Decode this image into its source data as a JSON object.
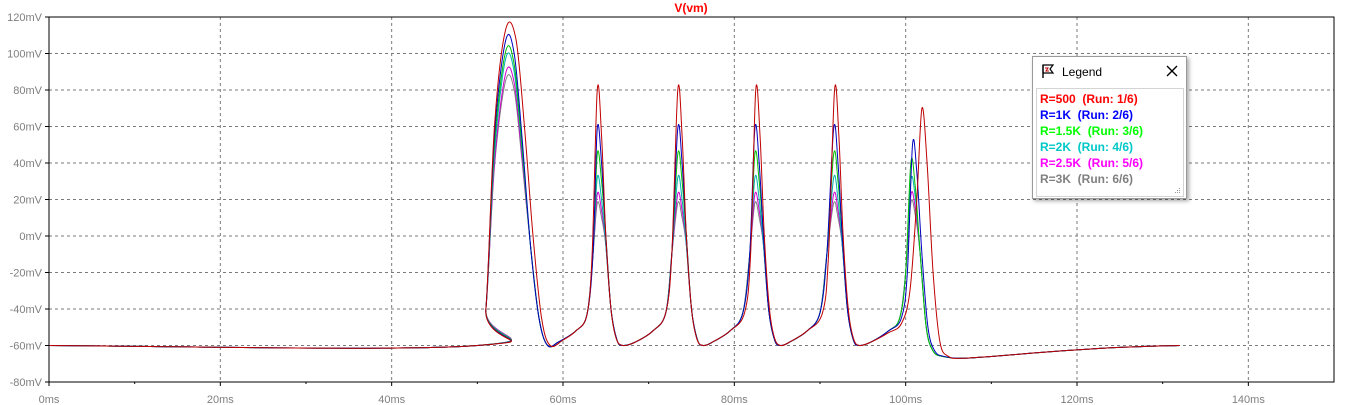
{
  "chart_data": {
    "type": "line",
    "title": "V(vm)",
    "title_color": "#ff0000",
    "xlabel": "",
    "ylabel": "",
    "xlim": [
      0,
      150
    ],
    "ylim": [
      -80,
      120
    ],
    "grid": true,
    "x_ticks": [
      0,
      20,
      40,
      60,
      80,
      100,
      120,
      140
    ],
    "x_tick_labels": [
      "0ms",
      "20ms",
      "40ms",
      "60ms",
      "80ms",
      "100ms",
      "120ms",
      "140ms"
    ],
    "y_ticks": [
      -80,
      -60,
      -40,
      -20,
      0,
      20,
      40,
      60,
      80,
      100,
      120
    ],
    "y_tick_labels": [
      "-80mV",
      "-60mV",
      "-40mV",
      "-20mV",
      "0mV",
      "20mV",
      "40mV",
      "60mV",
      "80mV",
      "100mV",
      "120mV"
    ],
    "legend_placement": "top-right",
    "series": [
      {
        "name": "R=500  (Run: 1/6)",
        "color": "#c00000",
        "x": [
          0,
          50,
          51,
          52,
          53.3,
          54.5,
          55.5,
          56.5,
          57.5,
          58.5,
          60,
          61.5,
          62.8,
          63.4,
          64.0,
          64.5,
          65.0,
          65.6,
          66.2,
          67,
          68.5,
          70.5,
          72.0,
          72.7,
          73.4,
          73.9,
          74.4,
          75.0,
          75.6,
          76.3,
          77.5,
          79.5,
          81.2,
          81.9,
          82.5,
          83.0,
          83.5,
          84.1,
          84.7,
          85.4,
          86.5,
          88.5,
          90.3,
          91.0,
          91.7,
          92.2,
          92.7,
          93.3,
          93.9,
          94.6,
          96,
          98,
          99.5,
          100.5,
          101.3,
          101.9,
          102.5,
          103.2,
          104,
          105,
          106.5,
          110,
          118,
          125,
          132
        ],
        "y": [
          -60,
          -60,
          -40,
          60,
          113,
          108,
          60,
          0,
          -45,
          -60,
          -57,
          -52,
          -43,
          -10,
          80,
          55,
          0,
          -40,
          -56,
          -60,
          -58,
          -52,
          -42,
          -10,
          80,
          55,
          0,
          -40,
          -56,
          -60,
          -58,
          -52,
          -42,
          -10,
          80,
          55,
          0,
          -40,
          -56,
          -60,
          -58,
          -52,
          -42,
          -10,
          80,
          55,
          0,
          -40,
          -56,
          -60,
          -58,
          -53,
          -48,
          -30,
          20,
          70,
          40,
          -20,
          -58,
          -66,
          -67,
          -66,
          -63,
          -61,
          -60
        ]
      },
      {
        "name": "R=1K  (Run: 2/6)",
        "color": "#0000c0",
        "x": [
          0,
          50,
          51,
          52,
          53.3,
          54.3,
          55.2,
          56.2,
          57.2,
          58.2,
          59.5,
          61.5,
          62.8,
          63.5,
          64.0,
          64.5,
          65.0,
          65.6,
          66.3,
          67,
          68.5,
          70.5,
          72.0,
          72.7,
          73.4,
          73.9,
          74.4,
          75.0,
          75.7,
          76.4,
          77.5,
          79.5,
          81.0,
          81.8,
          82.4,
          82.9,
          83.4,
          84.0,
          84.7,
          85.4,
          86.5,
          88.5,
          90.0,
          90.8,
          91.6,
          92.1,
          92.6,
          93.2,
          93.9,
          94.6,
          96,
          98,
          99.5,
          100.2,
          100.8,
          101.3,
          101.9,
          102.6,
          103.4,
          104.5,
          106.5,
          110,
          118,
          125,
          132
        ],
        "y": [
          -60,
          -60,
          -40,
          55,
          107,
          100,
          55,
          -5,
          -45,
          -60,
          -58,
          -52,
          -43,
          -10,
          59,
          40,
          0,
          -40,
          -57,
          -60,
          -58,
          -52,
          -42,
          -10,
          59,
          40,
          0,
          -40,
          -57,
          -60,
          -58,
          -52,
          -42,
          -10,
          59,
          40,
          0,
          -40,
          -57,
          -60,
          -58,
          -52,
          -42,
          -10,
          59,
          40,
          0,
          -40,
          -57,
          -60,
          -58,
          -52,
          -45,
          -20,
          50,
          35,
          -10,
          -50,
          -63,
          -66,
          -67,
          -66,
          -63,
          -61,
          -60
        ]
      },
      {
        "name": "R=1.5K  (Run: 3/6)",
        "color": "#00c000",
        "x": [
          0,
          50,
          51,
          52,
          53.3,
          54.3,
          55.2,
          56.2,
          57.2,
          58.2,
          59.5,
          61.5,
          62.8,
          63.5,
          64.0,
          64.5,
          65.0,
          65.6,
          66.3,
          67,
          68.5,
          70.5,
          72.0,
          72.7,
          73.4,
          73.9,
          74.4,
          75.0,
          75.7,
          76.4,
          77.5,
          79.5,
          81.0,
          81.8,
          82.4,
          82.9,
          83.4,
          84.0,
          84.7,
          85.4,
          86.5,
          88.5,
          90.0,
          90.8,
          91.6,
          92.1,
          92.6,
          93.2,
          93.9,
          94.6,
          96,
          98,
          99.3,
          100.0,
          100.6,
          101.1,
          101.7,
          102.4,
          103.2,
          104.3,
          106.5,
          110,
          118,
          125,
          132
        ],
        "y": [
          -60,
          -60,
          -40,
          50,
          101,
          94,
          50,
          -5,
          -45,
          -60,
          -58,
          -52,
          -43,
          -10,
          45,
          30,
          0,
          -40,
          -57,
          -60,
          -58,
          -52,
          -42,
          -10,
          45,
          30,
          0,
          -40,
          -57,
          -60,
          -58,
          -52,
          -42,
          -10,
          45,
          30,
          0,
          -40,
          -57,
          -60,
          -58,
          -52,
          -42,
          -10,
          45,
          30,
          0,
          -40,
          -57,
          -60,
          -58,
          -52,
          -45,
          -20,
          40,
          28,
          -10,
          -50,
          -63,
          -66,
          -67,
          -66,
          -63,
          -61,
          -60
        ]
      },
      {
        "name": "R=2K  (Run: 4/6)",
        "color": "#00b0b0",
        "x": [
          0,
          50,
          51,
          52,
          53.3,
          54.3,
          55.2,
          56.2,
          57.2,
          58.2,
          59.5,
          61.5,
          62.8,
          63.5,
          64.0,
          64.5,
          65.0,
          65.6,
          66.3,
          67,
          68.5,
          70.5,
          72.0,
          72.7,
          73.4,
          73.9,
          74.4,
          75.0,
          75.7,
          76.4,
          77.5,
          79.5,
          81.0,
          81.8,
          82.4,
          82.9,
          83.4,
          84.0,
          84.7,
          85.4,
          86.5,
          88.5,
          90.0,
          90.8,
          91.6,
          92.1,
          92.6,
          93.2,
          93.9,
          94.6,
          96,
          98,
          99.3,
          100.0,
          100.6,
          101.1,
          101.7,
          102.4,
          103.2,
          104.3,
          106.5,
          110,
          118,
          125,
          132
        ],
        "y": [
          -60,
          -60,
          -40,
          45,
          97,
          90,
          48,
          -5,
          -45,
          -60,
          -58,
          -52,
          -43,
          -10,
          32,
          20,
          -5,
          -40,
          -57,
          -60,
          -58,
          -52,
          -42,
          -10,
          32,
          20,
          -5,
          -40,
          -57,
          -60,
          -58,
          -52,
          -42,
          -10,
          32,
          20,
          -5,
          -40,
          -57,
          -60,
          -58,
          -52,
          -42,
          -10,
          32,
          20,
          -5,
          -40,
          -57,
          -60,
          -58,
          -52,
          -45,
          -20,
          30,
          22,
          -10,
          -50,
          -63,
          -66,
          -67,
          -66,
          -63,
          -61,
          -60
        ]
      },
      {
        "name": "R=2.5K  (Run: 5/6)",
        "color": "#d000d0",
        "x": [
          0,
          50,
          51,
          52,
          53.3,
          54.3,
          55.2,
          56.2,
          57.2,
          58.2,
          59.5,
          61.5,
          62.8,
          63.5,
          64.0,
          64.5,
          65.0,
          65.6,
          66.3,
          67,
          68.5,
          70.5,
          72.0,
          72.7,
          73.4,
          73.9,
          74.4,
          75.0,
          75.7,
          76.4,
          77.5,
          79.5,
          81.0,
          81.8,
          82.4,
          82.9,
          83.4,
          84.0,
          84.7,
          85.4,
          86.5,
          88.5,
          90.0,
          90.8,
          91.6,
          92.1,
          92.6,
          93.2,
          93.9,
          94.6,
          96,
          98,
          99.3,
          100.0,
          100.6,
          101.1,
          101.7,
          102.4,
          103.2,
          104.3,
          106.5,
          110,
          118,
          125,
          132
        ],
        "y": [
          -60,
          -60,
          -40,
          40,
          89,
          84,
          44,
          -5,
          -45,
          -60,
          -58,
          -52,
          -43,
          -10,
          23,
          14,
          -5,
          -40,
          -57,
          -60,
          -58,
          -52,
          -42,
          -10,
          23,
          14,
          -5,
          -40,
          -57,
          -60,
          -58,
          -52,
          -42,
          -10,
          23,
          14,
          -5,
          -40,
          -57,
          -60,
          -58,
          -52,
          -42,
          -10,
          23,
          14,
          -5,
          -40,
          -57,
          -60,
          -58,
          -52,
          -45,
          -20,
          22,
          16,
          -10,
          -50,
          -63,
          -66,
          -67,
          -66,
          -63,
          -61,
          -60
        ]
      },
      {
        "name": "R=3K  (Run: 6/6)",
        "color": "#808080",
        "x": [
          0,
          50,
          51,
          52,
          53.3,
          54.3,
          55.2,
          56.2,
          57.2,
          58.2,
          59.5,
          61.5,
          62.8,
          63.5,
          64.0,
          64.5,
          65.0,
          65.6,
          66.3,
          67,
          68.5,
          70.5,
          72.0,
          72.7,
          73.4,
          73.9,
          74.4,
          75.0,
          75.7,
          76.4,
          77.5,
          79.5,
          81.0,
          81.8,
          82.4,
          82.9,
          83.4,
          84.0,
          84.7,
          85.4,
          86.5,
          88.5,
          90.0,
          90.8,
          91.6,
          92.1,
          92.6,
          93.2,
          93.9,
          94.6,
          96,
          98,
          99.3,
          100.0,
          100.6,
          101.1,
          101.7,
          102.4,
          103.2,
          104.3,
          106.5,
          110,
          118,
          125,
          132
        ],
        "y": [
          -60,
          -60,
          -40,
          38,
          85,
          80,
          42,
          -5,
          -45,
          -60,
          -58,
          -52,
          -43,
          -10,
          18,
          10,
          -5,
          -40,
          -57,
          -60,
          -58,
          -52,
          -42,
          -10,
          18,
          10,
          -5,
          -40,
          -57,
          -60,
          -58,
          -52,
          -42,
          -10,
          18,
          10,
          -5,
          -40,
          -57,
          -60,
          -58,
          -52,
          -42,
          -10,
          18,
          10,
          -5,
          -40,
          -57,
          -60,
          -58,
          -52,
          -45,
          -20,
          18,
          12,
          -10,
          -50,
          -63,
          -66,
          -67,
          -66,
          -63,
          -61,
          -60
        ]
      }
    ]
  },
  "legend": {
    "title": "Legend",
    "close_icon": "close-icon",
    "header_icon": "probe-icon",
    "entries": [
      {
        "text": "R=500  (Run: 1/6)",
        "color": "#ff0000"
      },
      {
        "text": "R=1K  (Run: 2/6)",
        "color": "#0000ff"
      },
      {
        "text": "R=1.5K  (Run: 3/6)",
        "color": "#00ff00"
      },
      {
        "text": "R=2K  (Run: 4/6)",
        "color": "#00c8c8"
      },
      {
        "text": "R=2.5K  (Run: 5/6)",
        "color": "#ff00ff"
      },
      {
        "text": "R=3K  (Run: 6/6)",
        "color": "#808080"
      }
    ]
  }
}
